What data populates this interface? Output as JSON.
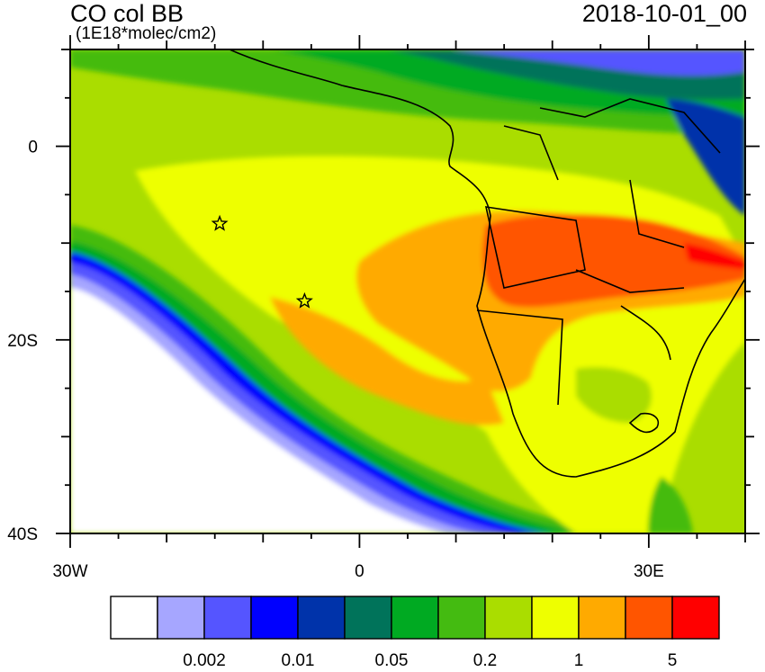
{
  "header": {
    "title": "CO col BB",
    "units": "(1E18*molec/cm2)",
    "timestamp": "2018-10-01_00"
  },
  "axes": {
    "x_ticks": [
      {
        "value": -30,
        "label": "30W"
      },
      {
        "value": 0,
        "label": "0"
      },
      {
        "value": 30,
        "label": "30E"
      }
    ],
    "y_ticks": [
      {
        "value": 0,
        "label": "0"
      },
      {
        "value": -20,
        "label": "20S"
      },
      {
        "value": -40,
        "label": "40S"
      }
    ],
    "lon_range": [
      -30,
      40
    ],
    "lat_range": [
      -40,
      10
    ]
  },
  "markers": [
    {
      "name": "star",
      "lon": -14.5,
      "lat": -8
    },
    {
      "name": "star",
      "lon": -5.7,
      "lat": -16
    }
  ],
  "colorbar": {
    "colors": [
      "#ffffff",
      "#a6a6ff",
      "#5555ff",
      "#0000ff",
      "#0033aa",
      "#00735a",
      "#00aa22",
      "#44bb11",
      "#aadd00",
      "#eeff00",
      "#ffaa00",
      "#ff5500",
      "#ff0000"
    ],
    "labels": [
      "0.002",
      "0.01",
      "0.05",
      "0.2",
      "1",
      "5"
    ]
  }
}
